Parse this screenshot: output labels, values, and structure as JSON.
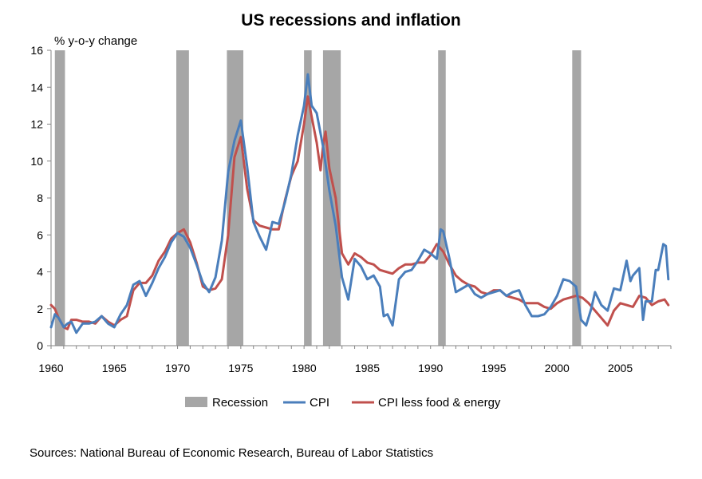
{
  "chart_data": {
    "type": "line",
    "title": "US recessions and inflation",
    "ylabel": "% y-o-y change",
    "xlabel": "",
    "xlim": [
      1960,
      2009
    ],
    "ylim": [
      0,
      16
    ],
    "y_ticks": [
      "0",
      "2",
      "4",
      "6",
      "8",
      "10",
      "12",
      "14",
      "16"
    ],
    "x_ticks": [
      "1960",
      "1965",
      "1970",
      "1975",
      "1980",
      "1985",
      "1990",
      "1995",
      "2000",
      "2005"
    ],
    "grid": false,
    "legend_position": "bottom",
    "recessions": {
      "name": "Recession",
      "color": "#a6a6a6",
      "periods": [
        [
          1960.3,
          1961.1
        ],
        [
          1969.9,
          1970.9
        ],
        [
          1973.9,
          1975.2
        ],
        [
          1980.0,
          1980.6
        ],
        [
          1981.5,
          1982.9
        ],
        [
          1990.6,
          1991.2
        ],
        [
          2001.2,
          2001.9
        ]
      ]
    },
    "series": [
      {
        "name": "CPI",
        "color": "#4a7ebb",
        "x": [
          1960.0,
          1960.3,
          1960.6,
          1961.0,
          1961.3,
          1961.6,
          1962.0,
          1962.5,
          1963.0,
          1963.5,
          1964.0,
          1964.5,
          1965.0,
          1965.5,
          1966.0,
          1966.5,
          1967.0,
          1967.5,
          1968.0,
          1968.5,
          1969.0,
          1969.5,
          1970.0,
          1970.5,
          1971.0,
          1971.5,
          1972.0,
          1972.5,
          1973.0,
          1973.5,
          1974.0,
          1974.5,
          1975.0,
          1975.5,
          1976.0,
          1976.5,
          1977.0,
          1977.5,
          1978.0,
          1978.5,
          1979.0,
          1979.5,
          1980.0,
          1980.3,
          1980.6,
          1981.0,
          1981.5,
          1982.0,
          1982.5,
          1983.0,
          1983.5,
          1984.0,
          1984.5,
          1985.0,
          1985.5,
          1986.0,
          1986.3,
          1986.6,
          1987.0,
          1987.5,
          1988.0,
          1988.5,
          1989.0,
          1989.5,
          1990.0,
          1990.5,
          1990.8,
          1991.0,
          1991.5,
          1992.0,
          1992.5,
          1993.0,
          1993.5,
          1994.0,
          1994.5,
          1995.0,
          1995.5,
          1996.0,
          1996.5,
          1997.0,
          1997.5,
          1998.0,
          1998.5,
          1999.0,
          1999.5,
          2000.0,
          2000.5,
          2001.0,
          2001.5,
          2001.9,
          2002.3,
          2002.7,
          2003.0,
          2003.5,
          2004.0,
          2004.5,
          2005.0,
          2005.5,
          2005.8,
          2006.0,
          2006.5,
          2006.8,
          2007.0,
          2007.5,
          2007.8,
          2008.0,
          2008.4,
          2008.6,
          2008.8
        ],
        "values": [
          1.0,
          1.7,
          1.5,
          1.0,
          1.2,
          1.3,
          0.7,
          1.2,
          1.2,
          1.3,
          1.6,
          1.2,
          1.0,
          1.7,
          2.2,
          3.3,
          3.5,
          2.7,
          3.4,
          4.2,
          4.8,
          5.6,
          6.1,
          5.9,
          5.3,
          4.4,
          3.4,
          2.9,
          3.7,
          5.7,
          9.4,
          11.1,
          12.2,
          9.7,
          6.7,
          5.9,
          5.2,
          6.7,
          6.6,
          7.8,
          9.3,
          11.4,
          13.0,
          14.7,
          13.0,
          12.6,
          10.8,
          8.4,
          6.5,
          3.7,
          2.5,
          4.7,
          4.3,
          3.6,
          3.8,
          3.2,
          1.6,
          1.7,
          1.1,
          3.6,
          4.0,
          4.1,
          4.6,
          5.2,
          5.0,
          4.7,
          6.3,
          6.2,
          4.7,
          2.9,
          3.1,
          3.3,
          2.8,
          2.6,
          2.8,
          2.9,
          3.0,
          2.7,
          2.9,
          3.0,
          2.2,
          1.6,
          1.6,
          1.7,
          2.1,
          2.7,
          3.6,
          3.5,
          3.2,
          1.4,
          1.1,
          2.0,
          2.9,
          2.2,
          1.9,
          3.1,
          3.0,
          4.6,
          3.5,
          3.8,
          4.2,
          1.4,
          2.4,
          2.4,
          4.1,
          4.1,
          5.5,
          5.4,
          3.6
        ]
      },
      {
        "name": "CPI less food & energy",
        "color": "#c0504d",
        "x": [
          1960.0,
          1960.3,
          1960.6,
          1961.0,
          1961.3,
          1961.6,
          1962.0,
          1962.5,
          1963.0,
          1963.5,
          1964.0,
          1964.5,
          1965.0,
          1965.5,
          1966.0,
          1966.5,
          1967.0,
          1967.5,
          1968.0,
          1968.5,
          1969.0,
          1969.5,
          1970.0,
          1970.5,
          1971.0,
          1971.5,
          1972.0,
          1972.5,
          1973.0,
          1973.5,
          1974.0,
          1974.5,
          1975.0,
          1975.5,
          1976.0,
          1976.5,
          1977.0,
          1977.5,
          1978.0,
          1978.5,
          1979.0,
          1979.5,
          1980.0,
          1980.3,
          1980.6,
          1981.0,
          1981.3,
          1981.5,
          1981.7,
          1982.0,
          1982.5,
          1983.0,
          1983.5,
          1984.0,
          1984.5,
          1985.0,
          1985.5,
          1986.0,
          1986.5,
          1987.0,
          1987.5,
          1988.0,
          1988.5,
          1989.0,
          1989.5,
          1990.0,
          1990.5,
          1991.0,
          1991.5,
          1992.0,
          1992.5,
          1993.0,
          1993.5,
          1994.0,
          1994.5,
          1995.0,
          1995.5,
          1996.0,
          1996.5,
          1997.0,
          1997.5,
          1998.0,
          1998.5,
          1999.0,
          1999.5,
          2000.0,
          2000.5,
          2001.0,
          2001.5,
          2002.0,
          2002.5,
          2003.0,
          2003.5,
          2004.0,
          2004.5,
          2005.0,
          2005.5,
          2006.0,
          2006.5,
          2007.0,
          2007.5,
          2008.0,
          2008.5,
          2008.8
        ],
        "values": [
          2.2,
          2.0,
          1.5,
          1.0,
          0.9,
          1.4,
          1.4,
          1.3,
          1.3,
          1.2,
          1.6,
          1.3,
          1.1,
          1.4,
          1.6,
          3.0,
          3.4,
          3.4,
          3.8,
          4.6,
          5.1,
          5.8,
          6.1,
          6.3,
          5.6,
          4.5,
          3.2,
          3.0,
          3.1,
          3.6,
          6.0,
          10.2,
          11.3,
          8.5,
          6.8,
          6.5,
          6.4,
          6.3,
          6.3,
          7.9,
          9.2,
          10.0,
          12.0,
          13.5,
          12.4,
          11.0,
          9.5,
          10.8,
          11.6,
          9.6,
          8.0,
          5.0,
          4.4,
          5.0,
          4.8,
          4.5,
          4.4,
          4.1,
          4.0,
          3.9,
          4.2,
          4.4,
          4.4,
          4.5,
          4.5,
          4.9,
          5.5,
          5.1,
          4.4,
          3.8,
          3.5,
          3.3,
          3.2,
          2.9,
          2.8,
          3.0,
          3.0,
          2.7,
          2.6,
          2.5,
          2.3,
          2.3,
          2.3,
          2.1,
          2.0,
          2.3,
          2.5,
          2.6,
          2.7,
          2.6,
          2.3,
          1.9,
          1.5,
          1.1,
          1.9,
          2.3,
          2.2,
          2.1,
          2.7,
          2.6,
          2.2,
          2.4,
          2.5,
          2.2
        ]
      }
    ]
  },
  "legend": {
    "recession": "Recession",
    "cpi": "CPI",
    "core": "CPI less food & energy"
  },
  "source": "Sources: National Bureau of Economic Research, Bureau of Labor Statistics"
}
